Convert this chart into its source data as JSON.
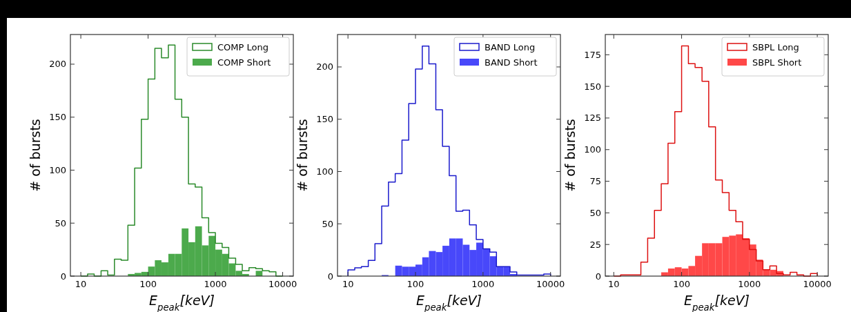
{
  "chart_data": [
    {
      "type": "histogram",
      "xlabel": "E$_{peak}$[keV]",
      "ylabel": "# of bursts",
      "log": "x",
      "legend": "top right",
      "xlim": [
        7,
        14400
      ],
      "xticks": [
        10,
        100,
        1000,
        10000
      ],
      "ylim": [
        0,
        228
      ],
      "yticks": [
        0,
        50,
        100,
        150,
        200
      ],
      "bins": [
        10,
        12.6,
        15.8,
        20,
        25.1,
        31.6,
        39.8,
        50.1,
        63.1,
        79.4,
        100,
        126,
        158,
        200,
        251,
        316,
        398,
        501,
        631,
        794,
        1000,
        1260,
        1580,
        2000,
        2510,
        3160,
        3980,
        5010,
        6310,
        7940,
        10000
      ],
      "series": [
        {
          "name": "COMP Long",
          "color": "#2a8a2a",
          "line_style": "solid",
          "values": [
            0,
            2,
            0,
            5,
            1,
            16,
            15,
            48,
            102,
            148,
            186,
            215,
            206,
            218,
            167,
            150,
            87,
            84,
            55,
            41,
            31,
            27,
            17,
            11,
            5,
            8,
            7,
            5,
            4,
            0
          ]
        },
        {
          "name": "COMP Short",
          "color": "#4caa4c",
          "values": [
            0,
            0,
            0,
            0,
            0,
            0,
            0,
            2,
            3,
            4,
            9,
            15,
            13,
            21,
            21,
            45,
            32,
            47,
            29,
            38,
            25,
            21,
            12,
            5,
            2,
            0,
            5,
            0,
            0,
            0
          ]
        }
      ]
    },
    {
      "type": "histogram",
      "xlabel": "E$_{peak}$[keV]",
      "ylabel": "# of bursts",
      "log": "x",
      "legend": "top right",
      "xlim": [
        7,
        14000
      ],
      "xticks": [
        10,
        100,
        1000,
        10000
      ],
      "ylim": [
        0,
        231
      ],
      "yticks": [
        0,
        50,
        100,
        150,
        200
      ],
      "bins": [
        10,
        12.6,
        15.8,
        20,
        25.1,
        31.6,
        39.8,
        50.1,
        63.1,
        79.4,
        100,
        126,
        158,
        200,
        251,
        316,
        398,
        501,
        631,
        794,
        1000,
        1260,
        1580,
        2000,
        2510,
        3160,
        3980,
        5010,
        6310,
        7940,
        10000
      ],
      "series": [
        {
          "name": "BAND Long",
          "color": "#1a1acc",
          "line_style": "solid",
          "values": [
            6,
            8,
            9,
            15,
            31,
            67,
            90,
            98,
            130,
            165,
            198,
            220,
            203,
            159,
            124,
            96,
            62,
            63,
            49,
            35,
            26,
            23,
            9,
            9,
            4,
            1,
            1,
            1,
            1,
            2
          ]
        },
        {
          "name": "BAND Short",
          "color": "#4848fa",
          "values": [
            0,
            0,
            0,
            0,
            0,
            1,
            0,
            10,
            9,
            9,
            11,
            18,
            24,
            23,
            29,
            36,
            36,
            30,
            25,
            32,
            26,
            19,
            9,
            9,
            2,
            null,
            null,
            0,
            0,
            0
          ]
        }
      ]
    },
    {
      "type": "histogram",
      "xlabel": "E$_{peak}$[keV]",
      "ylabel": "# of bursts",
      "log": "x",
      "legend": "top right",
      "xlim": [
        7.5,
        14500
      ],
      "xticks": [
        10,
        100,
        1000,
        10000
      ],
      "ylim": [
        0,
        191
      ],
      "yticks": [
        0,
        25,
        50,
        75,
        100,
        125,
        150,
        175
      ],
      "bins": [
        10,
        12.6,
        15.8,
        20,
        25.1,
        31.6,
        39.8,
        50.1,
        63.1,
        79.4,
        100,
        126,
        158,
        200,
        251,
        316,
        398,
        501,
        631,
        794,
        1000,
        1260,
        1580,
        2000,
        2510,
        3160,
        3980,
        5010,
        6310,
        7940,
        10000
      ],
      "series": [
        {
          "name": "SBPL Long",
          "color": "#dd1111",
          "line_style": "solid",
          "values": [
            0,
            1,
            1,
            1,
            11,
            30,
            52,
            73,
            105,
            130,
            182,
            168,
            165,
            154,
            118,
            76,
            66,
            52,
            43,
            29,
            21,
            12,
            5,
            8,
            2,
            1,
            3,
            1,
            0,
            2
          ]
        },
        {
          "name": "SBPL Short",
          "color": "#ff4848",
          "values": [
            0,
            0,
            0,
            0,
            0,
            0,
            0,
            3,
            6,
            7,
            6,
            8,
            16,
            26,
            26,
            26,
            31,
            32,
            33,
            30,
            25,
            13,
            5,
            5,
            4,
            null,
            0,
            0,
            0,
            null
          ]
        }
      ]
    }
  ]
}
